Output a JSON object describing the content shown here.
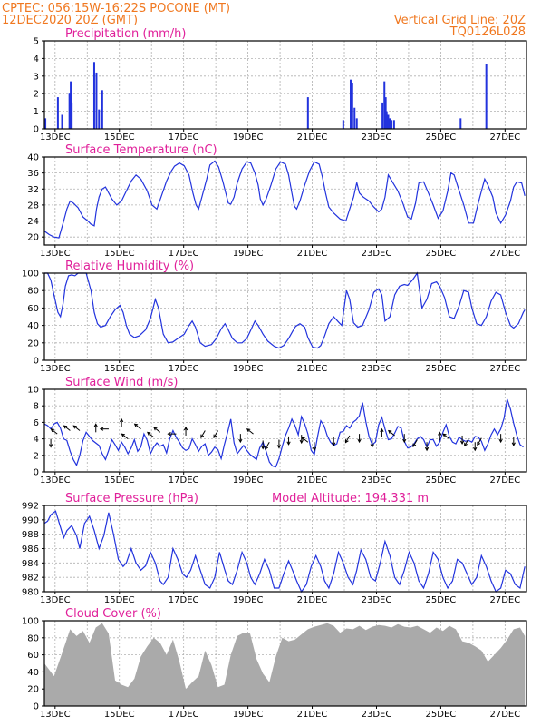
{
  "header": {
    "line1": "CPTEC:   056:15W-16:22S   POCONE (MT)",
    "line2": "12DEC2020 20Z (GMT)",
    "grid_note": "Vertical Grid Line: 20Z",
    "run_code": "TQ0126L028"
  },
  "colors": {
    "header": "#f07820",
    "panel_title": "#e0209a",
    "series": "#2233dd",
    "cloud_fill": "#aaaaaa",
    "grid": "#b0b0b0"
  },
  "x_axis": {
    "tick_labels": [
      "13DEC",
      "15DEC",
      "17DEC",
      "19DEC",
      "21DEC",
      "23DEC",
      "25DEC",
      "27DEC"
    ]
  },
  "chart_data": [
    {
      "id": "precip",
      "type": "bar",
      "title": "Precipitation (mm/h)",
      "ylim": [
        0,
        5
      ],
      "yticks": [
        0,
        1,
        2,
        3,
        4,
        5
      ],
      "x_unit": "days_since_start",
      "x": [
        0.03,
        0.42,
        0.55,
        0.78,
        0.82,
        0.85,
        1.55,
        1.62,
        1.7,
        1.8,
        8.2,
        9.3,
        9.53,
        9.58,
        9.65,
        9.72,
        10.52,
        10.58,
        10.62,
        10.65,
        10.7,
        10.75,
        10.8,
        10.88,
        12.95,
        13.75
      ],
      "values": [
        0.6,
        1.8,
        0.8,
        2.0,
        2.7,
        1.5,
        3.8,
        3.2,
        1.1,
        2.2,
        1.8,
        0.5,
        2.8,
        2.6,
        1.2,
        0.6,
        1.5,
        2.7,
        1.8,
        1.0,
        0.8,
        0.6,
        0.5,
        0.5,
        0.6,
        3.7
      ]
    },
    {
      "id": "temp",
      "type": "line",
      "title": "Surface Temperature (nC)",
      "ylim": [
        18,
        40
      ],
      "yticks": [
        20,
        24,
        28,
        32,
        36,
        40
      ],
      "x_unit": "days_since_start",
      "x": [
        0,
        0.15,
        0.3,
        0.45,
        0.6,
        0.7,
        0.8,
        0.9,
        1.05,
        1.2,
        1.35,
        1.45,
        1.55,
        1.62,
        1.7,
        1.8,
        1.9,
        2.1,
        2.25,
        2.4,
        2.55,
        2.7,
        2.85,
        3.0,
        3.2,
        3.35,
        3.5,
        3.65,
        3.8,
        3.95,
        4.05,
        4.2,
        4.35,
        4.5,
        4.62,
        4.72,
        4.8,
        4.9,
        5.05,
        5.15,
        5.3,
        5.42,
        5.55,
        5.65,
        5.72,
        5.8,
        5.9,
        6.0,
        6.15,
        6.3,
        6.42,
        6.55,
        6.65,
        6.72,
        6.8,
        6.9,
        7.05,
        7.2,
        7.35,
        7.5,
        7.6,
        7.7,
        7.78,
        7.85,
        7.95,
        8.1,
        8.25,
        8.4,
        8.55,
        8.65,
        8.75,
        8.85,
        9.0,
        9.2,
        9.38,
        9.5,
        9.62,
        9.72,
        9.8,
        9.92,
        10.1,
        10.25,
        10.4,
        10.5,
        10.6,
        10.7,
        10.85,
        11.0,
        11.15,
        11.3,
        11.42,
        11.55,
        11.65,
        11.8,
        11.95,
        12.1,
        12.25,
        12.4,
        12.55,
        12.65,
        12.75,
        12.85,
        13.05,
        13.2,
        13.35,
        13.5,
        13.6,
        13.7,
        13.8,
        13.95,
        14.05,
        14.2,
        14.35,
        14.5,
        14.6,
        14.7,
        14.85,
        14.95
      ],
      "values": [
        21.5,
        20.6,
        20,
        19.8,
        24,
        27,
        29,
        28.5,
        27.3,
        25,
        24,
        23.2,
        22.8,
        27,
        30,
        32,
        32.5,
        29.5,
        28,
        29,
        31.5,
        34,
        35.5,
        34.5,
        31.5,
        28,
        27,
        30.5,
        34,
        36.5,
        37.7,
        38.5,
        37.8,
        35.5,
        31,
        28,
        27,
        30,
        34.5,
        38,
        39,
        37.5,
        34,
        30.8,
        28.5,
        28.2,
        30,
        33.5,
        37,
        38.8,
        38.5,
        36,
        33,
        29.5,
        28,
        29.5,
        33,
        37,
        38.8,
        38.2,
        35.5,
        31,
        27.7,
        27,
        29,
        33,
        36.5,
        38.8,
        38.2,
        35,
        31,
        27.5,
        26,
        24.5,
        24,
        27,
        30,
        33.6,
        31,
        30,
        29,
        27.5,
        26.3,
        27,
        30,
        35.5,
        33.5,
        31.5,
        28.5,
        25,
        24.5,
        28.5,
        33.5,
        33.8,
        31,
        28,
        24.7,
        26.5,
        31.5,
        36,
        35.5,
        33,
        28,
        23.5,
        23.5,
        28.5,
        31.5,
        34.5,
        33,
        30,
        26,
        23.5,
        25.5,
        29,
        32.5,
        33.8,
        33.5,
        30.3
      ]
    },
    {
      "id": "rh",
      "type": "line",
      "title": "Relative Humidity (%)",
      "ylim": [
        0,
        100
      ],
      "yticks": [
        0,
        20,
        40,
        60,
        80,
        100
      ],
      "x_unit": "days_since_start",
      "x": [
        0,
        0.1,
        0.2,
        0.3,
        0.42,
        0.5,
        0.58,
        0.65,
        0.75,
        0.85,
        0.95,
        1.05,
        1.2,
        1.3,
        1.45,
        1.55,
        1.65,
        1.75,
        1.9,
        2.05,
        2.2,
        2.35,
        2.45,
        2.55,
        2.65,
        2.8,
        2.95,
        3.15,
        3.3,
        3.45,
        3.55,
        3.7,
        3.85,
        4.0,
        4.15,
        4.35,
        4.5,
        4.6,
        4.7,
        4.85,
        5.0,
        5.2,
        5.35,
        5.5,
        5.62,
        5.72,
        5.85,
        6.0,
        6.15,
        6.3,
        6.45,
        6.55,
        6.65,
        6.8,
        6.95,
        7.15,
        7.3,
        7.45,
        7.6,
        7.72,
        7.82,
        7.95,
        8.1,
        8.2,
        8.35,
        8.5,
        8.6,
        8.72,
        8.85,
        9.0,
        9.15,
        9.25,
        9.4,
        9.5,
        9.62,
        9.75,
        9.9,
        10.1,
        10.25,
        10.4,
        10.5,
        10.6,
        10.75,
        10.9,
        11.05,
        11.2,
        11.3,
        11.45,
        11.6,
        11.75,
        11.9,
        12.05,
        12.2,
        12.3,
        12.45,
        12.6,
        12.75,
        12.9,
        13.05,
        13.2,
        13.3,
        13.45,
        13.6,
        13.75,
        13.9,
        14.05,
        14.2,
        14.35,
        14.5,
        14.6,
        14.75,
        14.9,
        14.95
      ],
      "values": [
        100,
        100,
        92,
        75,
        55,
        50,
        65,
        85,
        97,
        98,
        97,
        100,
        100,
        100,
        80,
        55,
        42,
        38,
        40,
        50,
        58,
        63,
        55,
        40,
        30,
        26,
        28,
        35,
        48,
        70,
        60,
        30,
        20,
        21,
        25,
        30,
        40,
        45,
        38,
        20,
        16,
        18,
        25,
        36,
        42,
        35,
        25,
        20,
        20,
        25,
        37,
        45,
        40,
        30,
        22,
        16,
        14,
        17,
        25,
        33,
        39,
        42,
        38,
        26,
        15,
        14,
        17,
        28,
        42,
        50,
        44,
        40,
        80,
        70,
        43,
        38,
        40,
        58,
        78,
        82,
        75,
        45,
        50,
        75,
        85,
        87,
        86,
        92,
        100,
        60,
        70,
        88,
        90,
        85,
        72,
        50,
        48,
        62,
        80,
        78,
        60,
        42,
        40,
        50,
        68,
        78,
        75,
        55,
        40,
        37,
        42,
        55,
        58
      ]
    },
    {
      "id": "wind",
      "type": "line",
      "title": "Surface Wind (m/s)",
      "ylim": [
        0,
        10
      ],
      "yticks": [
        0,
        2,
        4,
        6,
        8,
        10
      ],
      "x_unit": "days_since_start",
      "x": [
        0,
        0.1,
        0.2,
        0.3,
        0.4,
        0.5,
        0.6,
        0.7,
        0.8,
        0.9,
        1.0,
        1.1,
        1.2,
        1.3,
        1.4,
        1.5,
        1.6,
        1.7,
        1.8,
        1.9,
        2.0,
        2.1,
        2.2,
        2.3,
        2.4,
        2.5,
        2.6,
        2.7,
        2.8,
        2.9,
        3.0,
        3.1,
        3.2,
        3.3,
        3.4,
        3.5,
        3.6,
        3.7,
        3.8,
        3.9,
        4.0,
        4.1,
        4.2,
        4.3,
        4.4,
        4.5,
        4.6,
        4.7,
        4.8,
        4.9,
        5.0,
        5.1,
        5.2,
        5.3,
        5.4,
        5.5,
        5.6,
        5.7,
        5.8,
        5.9,
        6.0,
        6.1,
        6.2,
        6.3,
        6.4,
        6.5,
        6.6,
        6.7,
        6.8,
        6.9,
        7.0,
        7.1,
        7.2,
        7.3,
        7.4,
        7.5,
        7.6,
        7.7,
        7.8,
        7.9,
        8.0,
        8.1,
        8.2,
        8.3,
        8.4,
        8.5,
        8.6,
        8.7,
        8.8,
        8.9,
        9.0,
        9.1,
        9.2,
        9.3,
        9.4,
        9.5,
        9.6,
        9.7,
        9.8,
        9.9,
        10.0,
        10.1,
        10.2,
        10.3,
        10.4,
        10.5,
        10.6,
        10.7,
        10.8,
        10.9,
        11.0,
        11.1,
        11.2,
        11.3,
        11.4,
        11.5,
        11.6,
        11.7,
        11.8,
        11.9,
        12.0,
        12.1,
        12.2,
        12.3,
        12.4,
        12.5,
        12.6,
        12.7,
        12.8,
        12.9,
        13.0,
        13.1,
        13.2,
        13.3,
        13.4,
        13.5,
        13.6,
        13.7,
        13.8,
        13.9,
        14.0,
        14.1,
        14.2,
        14.3,
        14.4,
        14.5,
        14.6,
        14.7,
        14.8,
        14.9
      ],
      "values": [
        5.8,
        5.6,
        5.2,
        5.8,
        6.0,
        5.3,
        4.0,
        3.8,
        2.5,
        1.5,
        0.8,
        2.0,
        3.8,
        4.8,
        4.3,
        3.8,
        3.5,
        3.2,
        2.2,
        1.5,
        2.6,
        3.9,
        3.3,
        2.6,
        3.6,
        3.0,
        2.2,
        2.9,
        3.9,
        2.5,
        3.0,
        4.6,
        3.8,
        2.2,
        3.0,
        3.5,
        3.1,
        3.3,
        2.3,
        4.0,
        5.0,
        4.2,
        3.6,
        2.9,
        2.6,
        2.8,
        4.0,
        3.3,
        2.5,
        3.1,
        3.4,
        2.0,
        2.4,
        3.0,
        2.7,
        1.6,
        3.3,
        4.8,
        6.4,
        3.5,
        2.2,
        2.7,
        3.2,
        2.6,
        2.1,
        1.8,
        1.5,
        2.9,
        3.6,
        2.5,
        1.2,
        0.7,
        0.6,
        1.6,
        3.1,
        4.4,
        5.3,
        6.4,
        5.6,
        4.5,
        6.7,
        5.8,
        4.6,
        2.6,
        2.1,
        4.3,
        6.2,
        5.6,
        4.4,
        3.6,
        3.2,
        3.4,
        4.8,
        4.9,
        5.6,
        5.3,
        6.0,
        6.3,
        6.8,
        8.4,
        6.1,
        4.3,
        3.3,
        3.6,
        5.7,
        6.6,
        5.2,
        3.9,
        4.0,
        4.7,
        5.5,
        5.3,
        3.7,
        2.9,
        3.0,
        3.4,
        4.0,
        4.3,
        3.9,
        3.0,
        3.9,
        3.9,
        3.1,
        3.6,
        4.8,
        5.7,
        4.3,
        3.6,
        3.4,
        4.2,
        3.9,
        3.7,
        3.8,
        3.6,
        4.3,
        4.2,
        3.7,
        2.6,
        3.4,
        4.5,
        5.2,
        4.5,
        5.2,
        6.5,
        8.8,
        7.6,
        5.9,
        4.4,
        3.3,
        3.0
      ]
    },
    {
      "id": "pressure",
      "type": "line",
      "title": "Surface Pressure (hPa)",
      "annotation": "Model Altitude: 194.331 m",
      "ylim": [
        980,
        992
      ],
      "yticks": [
        980,
        982,
        984,
        986,
        988,
        990,
        992
      ],
      "x_unit": "days_since_start",
      "x": [
        0,
        0.1,
        0.2,
        0.35,
        0.5,
        0.6,
        0.7,
        0.85,
        1.0,
        1.1,
        1.25,
        1.4,
        1.55,
        1.7,
        1.85,
        2.0,
        2.15,
        2.3,
        2.45,
        2.55,
        2.7,
        2.85,
        3.0,
        3.15,
        3.3,
        3.45,
        3.6,
        3.7,
        3.85,
        4.0,
        4.15,
        4.3,
        4.42,
        4.55,
        4.7,
        4.85,
        5.0,
        5.15,
        5.3,
        5.45,
        5.6,
        5.72,
        5.85,
        6.0,
        6.15,
        6.3,
        6.42,
        6.55,
        6.7,
        6.85,
        7.0,
        7.15,
        7.3,
        7.45,
        7.6,
        7.72,
        7.85,
        8.0,
        8.15,
        8.3,
        8.45,
        8.6,
        8.72,
        8.85,
        9.0,
        9.15,
        9.3,
        9.45,
        9.6,
        9.72,
        9.85,
        10.0,
        10.15,
        10.3,
        10.45,
        10.6,
        10.75,
        10.9,
        11.05,
        11.2,
        11.35,
        11.5,
        11.65,
        11.8,
        11.95,
        12.1,
        12.25,
        12.4,
        12.55,
        12.7,
        12.85,
        13.0,
        13.15,
        13.3,
        13.45,
        13.6,
        13.75,
        13.9,
        14.05,
        14.2,
        14.35,
        14.5,
        14.65,
        14.8,
        14.95
      ],
      "values": [
        989.5,
        989.8,
        990.7,
        991.2,
        989.0,
        987.5,
        988.5,
        989.2,
        987.8,
        986.0,
        989.5,
        990.5,
        988.5,
        986.0,
        987.8,
        991.0,
        988.0,
        984.5,
        983.5,
        984.0,
        986.0,
        984.0,
        983.0,
        983.6,
        985.5,
        984.0,
        981.5,
        981.0,
        982.0,
        986.0,
        984.5,
        982.5,
        982.0,
        983.0,
        985.0,
        983.0,
        981.0,
        980.5,
        982.0,
        985.5,
        983.2,
        981.5,
        981.0,
        983.0,
        985.5,
        984.0,
        982.0,
        981.0,
        982.5,
        984.5,
        983.0,
        980.5,
        980.5,
        982.5,
        984.3,
        983.0,
        981.5,
        980.0,
        981.0,
        983.5,
        985.0,
        983.5,
        981.5,
        980.5,
        982.5,
        985.5,
        984.0,
        982.0,
        981.0,
        983.0,
        985.8,
        984.5,
        982.0,
        981.5,
        984.0,
        987.0,
        985.0,
        982.0,
        981.0,
        983.0,
        985.5,
        984.0,
        981.5,
        980.5,
        982.5,
        985.5,
        984.5,
        982.0,
        980.5,
        981.5,
        984.5,
        984.0,
        982.5,
        981.0,
        982.0,
        985.0,
        983.5,
        981.5,
        980.0,
        980.5,
        983.0,
        982.5,
        981.0,
        980.5,
        983.5
      ]
    },
    {
      "id": "cloud",
      "type": "area",
      "title": "Cloud Cover (%)",
      "ylim": [
        0,
        100
      ],
      "yticks": [
        0,
        20,
        40,
        60,
        80,
        100
      ],
      "x_unit": "days_since_start",
      "x": [
        0,
        0.3,
        0.55,
        0.8,
        1.0,
        1.2,
        1.4,
        1.6,
        1.8,
        2.0,
        2.2,
        2.4,
        2.6,
        2.8,
        3.0,
        3.2,
        3.4,
        3.6,
        3.8,
        4.0,
        4.2,
        4.4,
        4.6,
        4.8,
        5.0,
        5.2,
        5.4,
        5.6,
        5.8,
        6.0,
        6.2,
        6.4,
        6.6,
        6.8,
        7.0,
        7.2,
        7.4,
        7.6,
        7.8,
        8.0,
        8.2,
        8.4,
        8.6,
        8.8,
        9.0,
        9.2,
        9.4,
        9.6,
        9.8,
        10.0,
        10.2,
        10.4,
        10.6,
        10.8,
        11.0,
        11.2,
        11.4,
        11.6,
        11.8,
        12.0,
        12.2,
        12.4,
        12.6,
        12.8,
        13.0,
        13.2,
        13.4,
        13.6,
        13.8,
        14.0,
        14.2,
        14.4,
        14.6,
        14.8,
        14.95
      ],
      "values": [
        50,
        35,
        62,
        90,
        82,
        88,
        74,
        92,
        97,
        85,
        30,
        25,
        22,
        32,
        58,
        70,
        80,
        74,
        60,
        78,
        52,
        20,
        28,
        35,
        65,
        48,
        22,
        25,
        60,
        82,
        86,
        85,
        55,
        38,
        28,
        58,
        80,
        76,
        78,
        84,
        90,
        93,
        95,
        97,
        94,
        86,
        91,
        90,
        94,
        89,
        93,
        95,
        94,
        92,
        96,
        93,
        92,
        94,
        90,
        86,
        92,
        88,
        94,
        90,
        76,
        74,
        70,
        65,
        52,
        60,
        68,
        78,
        90,
        92,
        82
      ]
    }
  ],
  "wind_arrows_x": [
    0.2,
    0.4,
    0.8,
    1.1,
    1.6,
    2.0,
    2.4,
    2.6,
    3.0,
    3.4,
    3.6,
    4.1,
    4.4,
    5.0,
    5.4,
    6.1,
    6.5,
    6.8,
    7.0,
    7.3,
    7.6,
    8.0,
    8.2,
    8.4,
    9.0,
    9.5,
    9.8,
    10.2,
    10.5,
    10.9,
    11.2,
    11.6,
    11.9,
    12.3,
    12.6,
    13.0,
    13.2,
    13.4,
    13.6,
    14.2,
    14.6
  ],
  "wind_arrows_y": [
    4.0,
    4.6,
    5.0,
    5.0,
    4.8,
    5.2,
    5.4,
    4.0,
    5.2,
    4.2,
    4.8,
    4.6,
    4.4,
    5.0,
    5.0,
    4.6,
    4.6,
    3.8,
    3.6,
    3.9,
    4.3,
    4.5,
    3.6,
    3.6,
    4.2,
    4.4,
    4.6,
    4.0,
    4.2,
    4.4,
    4.6,
    3.9,
    3.6,
    3.8,
    4.0,
    4.4,
    4.0,
    3.6,
    4.1,
    4.6,
    4.2
  ],
  "wind_arrows_dir": [
    "dn",
    "ul",
    "ul",
    "ul",
    "up",
    "l",
    "up",
    "ul",
    "ul",
    "ul",
    "ul",
    "l",
    "up",
    "dl",
    "dl",
    "dn",
    "ul",
    "dn",
    "dl",
    "dn",
    "dn",
    "dn",
    "ul",
    "dn",
    "dn",
    "dl",
    "dn",
    "dn",
    "up",
    "ul",
    "dn",
    "dl",
    "dn",
    "up",
    "ul",
    "dn",
    "dl",
    "dn",
    "dl",
    "dn",
    "dn"
  ]
}
